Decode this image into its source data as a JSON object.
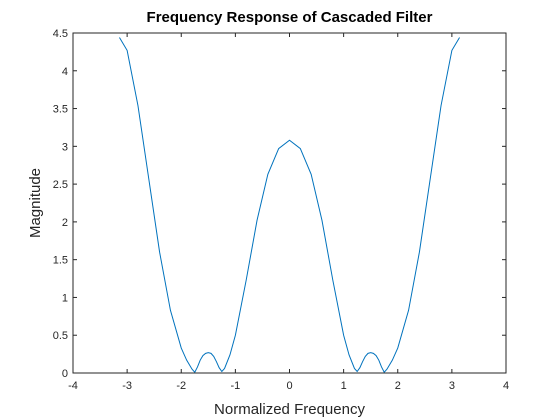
{
  "chart_data": {
    "type": "line",
    "title": "Frequency Response of Cascaded Filter",
    "xlabel": "Normalized Frequency",
    "ylabel": "Magnitude",
    "xlim": [
      -4,
      4
    ],
    "ylim": [
      0,
      4.5
    ],
    "xticks": [
      -4,
      -3,
      -2,
      -1,
      0,
      1,
      2,
      3,
      4
    ],
    "yticks": [
      0,
      0.5,
      1,
      1.5,
      2,
      2.5,
      3,
      3.5,
      4,
      4.5
    ],
    "xtick_labels": [
      "-4",
      "-3",
      "-2",
      "-1",
      "0",
      "1",
      "2",
      "3",
      "4"
    ],
    "ytick_labels": [
      "0",
      "0.5",
      "1",
      "1.5",
      "2",
      "2.5",
      "3",
      "3.5",
      "4",
      "4.5"
    ],
    "grid": false,
    "box": true,
    "series": [
      {
        "color": "#0072bd",
        "x": [
          -3.1416,
          -3.0,
          -2.8,
          -2.6,
          -2.4,
          -2.2,
          -2.0,
          -1.9,
          -1.8,
          -1.75,
          -1.7,
          -1.65,
          -1.6,
          -1.55,
          -1.5,
          -1.45,
          -1.4,
          -1.35,
          -1.3,
          -1.25,
          -1.2,
          -1.1,
          -1.0,
          -0.8,
          -0.6,
          -0.4,
          -0.2,
          0.0,
          0.2,
          0.4,
          0.6,
          0.8,
          1.0,
          1.1,
          1.2,
          1.25,
          1.3,
          1.35,
          1.4,
          1.45,
          1.5,
          1.55,
          1.6,
          1.65,
          1.7,
          1.75,
          1.8,
          1.9,
          2.0,
          2.2,
          2.4,
          2.6,
          2.8,
          3.0,
          3.1416
        ],
        "y": [
          4.44,
          4.27,
          3.54,
          2.57,
          1.6,
          0.83,
          0.33,
          0.17,
          0.05,
          0.01,
          0.08,
          0.17,
          0.23,
          0.26,
          0.27,
          0.26,
          0.22,
          0.15,
          0.07,
          0.02,
          0.06,
          0.24,
          0.5,
          1.23,
          2.02,
          2.63,
          2.97,
          3.08,
          2.97,
          2.63,
          2.02,
          1.23,
          0.5,
          0.24,
          0.06,
          0.02,
          0.07,
          0.15,
          0.22,
          0.26,
          0.27,
          0.26,
          0.23,
          0.17,
          0.08,
          0.01,
          0.05,
          0.17,
          0.33,
          0.83,
          1.6,
          2.57,
          3.54,
          4.27,
          4.44
        ]
      }
    ]
  }
}
